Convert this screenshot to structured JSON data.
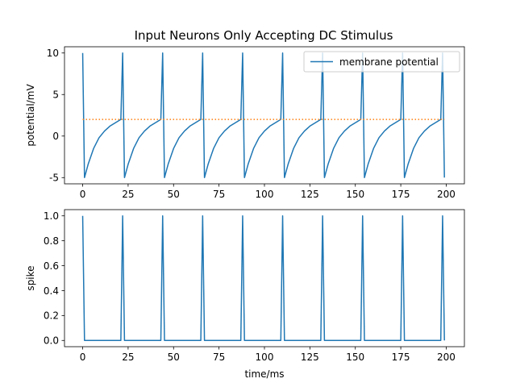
{
  "title": "Input Neurons Only Accepting DC Stimulus",
  "colors": {
    "membrane": "#1f77b4",
    "threshold": "#ff7f0e",
    "axes": "#000000",
    "legend_border": "#cccccc"
  },
  "chart_data": [
    {
      "type": "line",
      "ylabel": "potential/mV",
      "xlim": [
        -10,
        210
      ],
      "ylim": [
        -5.75,
        10.75
      ],
      "xticks": [
        0,
        25,
        50,
        75,
        100,
        125,
        150,
        175,
        200
      ],
      "yticks": [
        -5,
        0,
        5,
        10
      ],
      "legend": {
        "position": "top-right",
        "entries": [
          "membrane potential"
        ]
      },
      "spike_times": [
        0,
        22,
        44,
        66,
        88,
        110,
        132,
        154,
        176,
        198
      ],
      "spike_peak": 10,
      "reset_value": -5,
      "threshold": 2,
      "t_end": 199,
      "series": [
        {
          "name": "membrane potential",
          "style": "solid",
          "color": "#1f77b4",
          "recovery_curve": {
            "dt": [
              1,
              3,
              6,
              9,
              12,
              15,
              18,
              21
            ],
            "v": [
              -5.0,
              -3.4,
              -1.5,
              -0.2,
              0.6,
              1.2,
              1.6,
              2.0
            ]
          }
        },
        {
          "style": "dotted",
          "color": "#ff7f0e",
          "x": [
            0,
            199
          ],
          "y": [
            2,
            2
          ]
        }
      ]
    },
    {
      "type": "line",
      "xlabel": "time/ms",
      "ylabel": "spike",
      "xlim": [
        -10,
        210
      ],
      "ylim": [
        -0.05,
        1.05
      ],
      "xticks": [
        0,
        25,
        50,
        75,
        100,
        125,
        150,
        175,
        200
      ],
      "yticks": [
        0.0,
        0.2,
        0.4,
        0.6,
        0.8,
        1.0
      ],
      "ytick_labels": [
        "0.0",
        "0.2",
        "0.4",
        "0.6",
        "0.8",
        "1.0"
      ],
      "spike_times": [
        0,
        22,
        44,
        66,
        88,
        110,
        132,
        154,
        176,
        198
      ],
      "t_end": 199,
      "series": [
        {
          "style": "solid",
          "color": "#1f77b4",
          "spike_value": 1,
          "rest_value": 0
        }
      ]
    }
  ]
}
